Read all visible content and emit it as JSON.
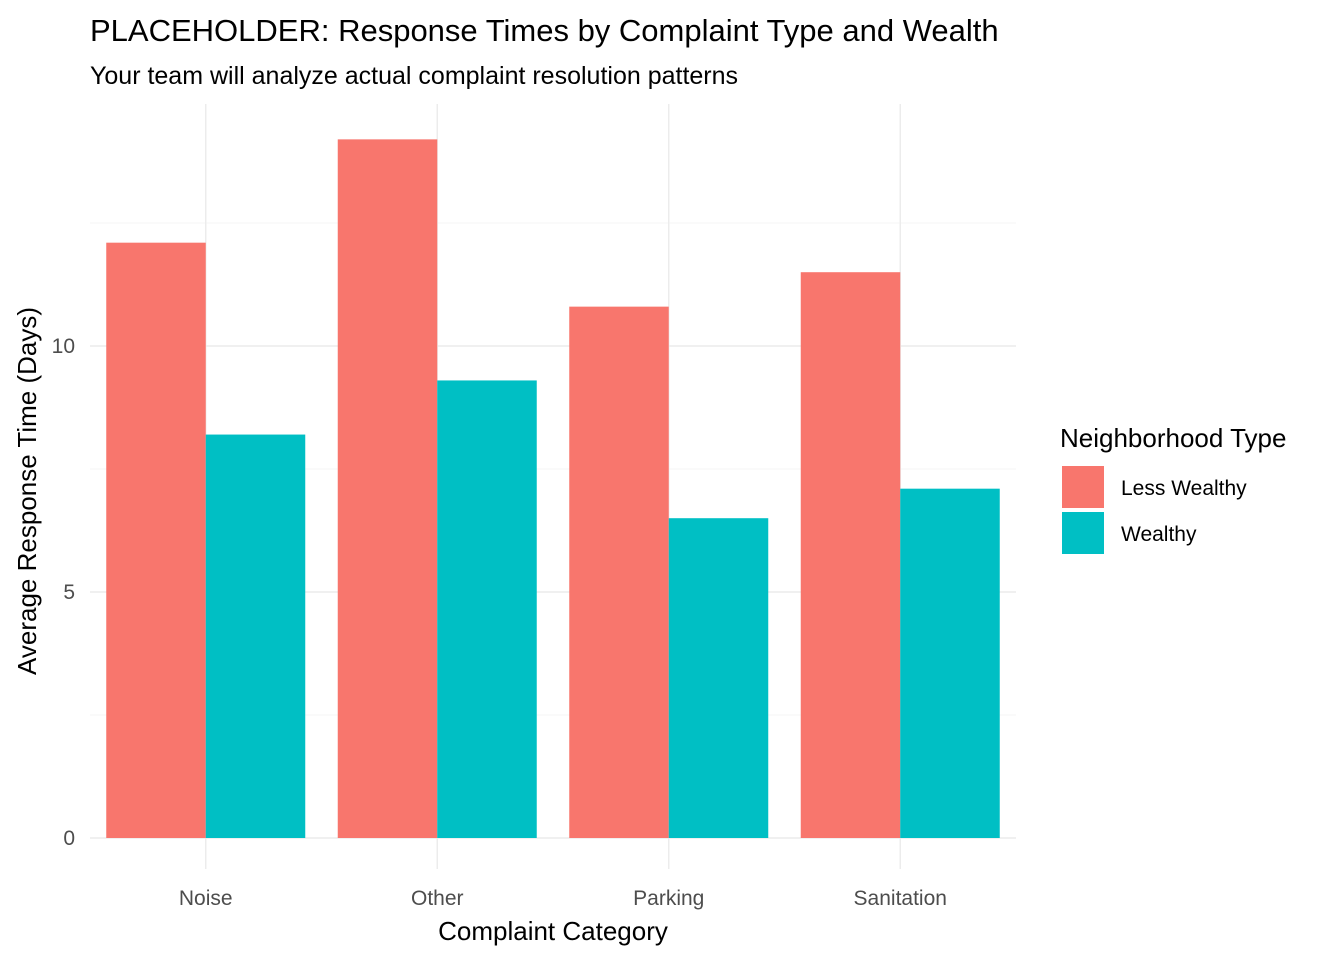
{
  "chart_data": {
    "type": "bar",
    "title": "PLACEHOLDER: Response Times by Complaint Type and Wealth",
    "subtitle": "Your team will analyze actual complaint resolution patterns",
    "xlabel": "Complaint Category",
    "ylabel": "Average Response Time (Days)",
    "categories": [
      "Noise",
      "Other",
      "Parking",
      "Sanitation"
    ],
    "series": [
      {
        "name": "Less Wealthy",
        "color": "#F8766D",
        "values": [
          12.1,
          14.2,
          10.8,
          11.5
        ]
      },
      {
        "name": "Wealthy",
        "color": "#00BFC4",
        "values": [
          8.2,
          9.3,
          6.5,
          7.1
        ]
      }
    ],
    "ylim": [
      0,
      14.2
    ],
    "yticks": [
      0,
      5,
      10
    ],
    "ytick_labels": [
      "0",
      "5",
      "10"
    ],
    "grid": true,
    "legend": {
      "title": "Neighborhood Type",
      "position": "right"
    }
  }
}
